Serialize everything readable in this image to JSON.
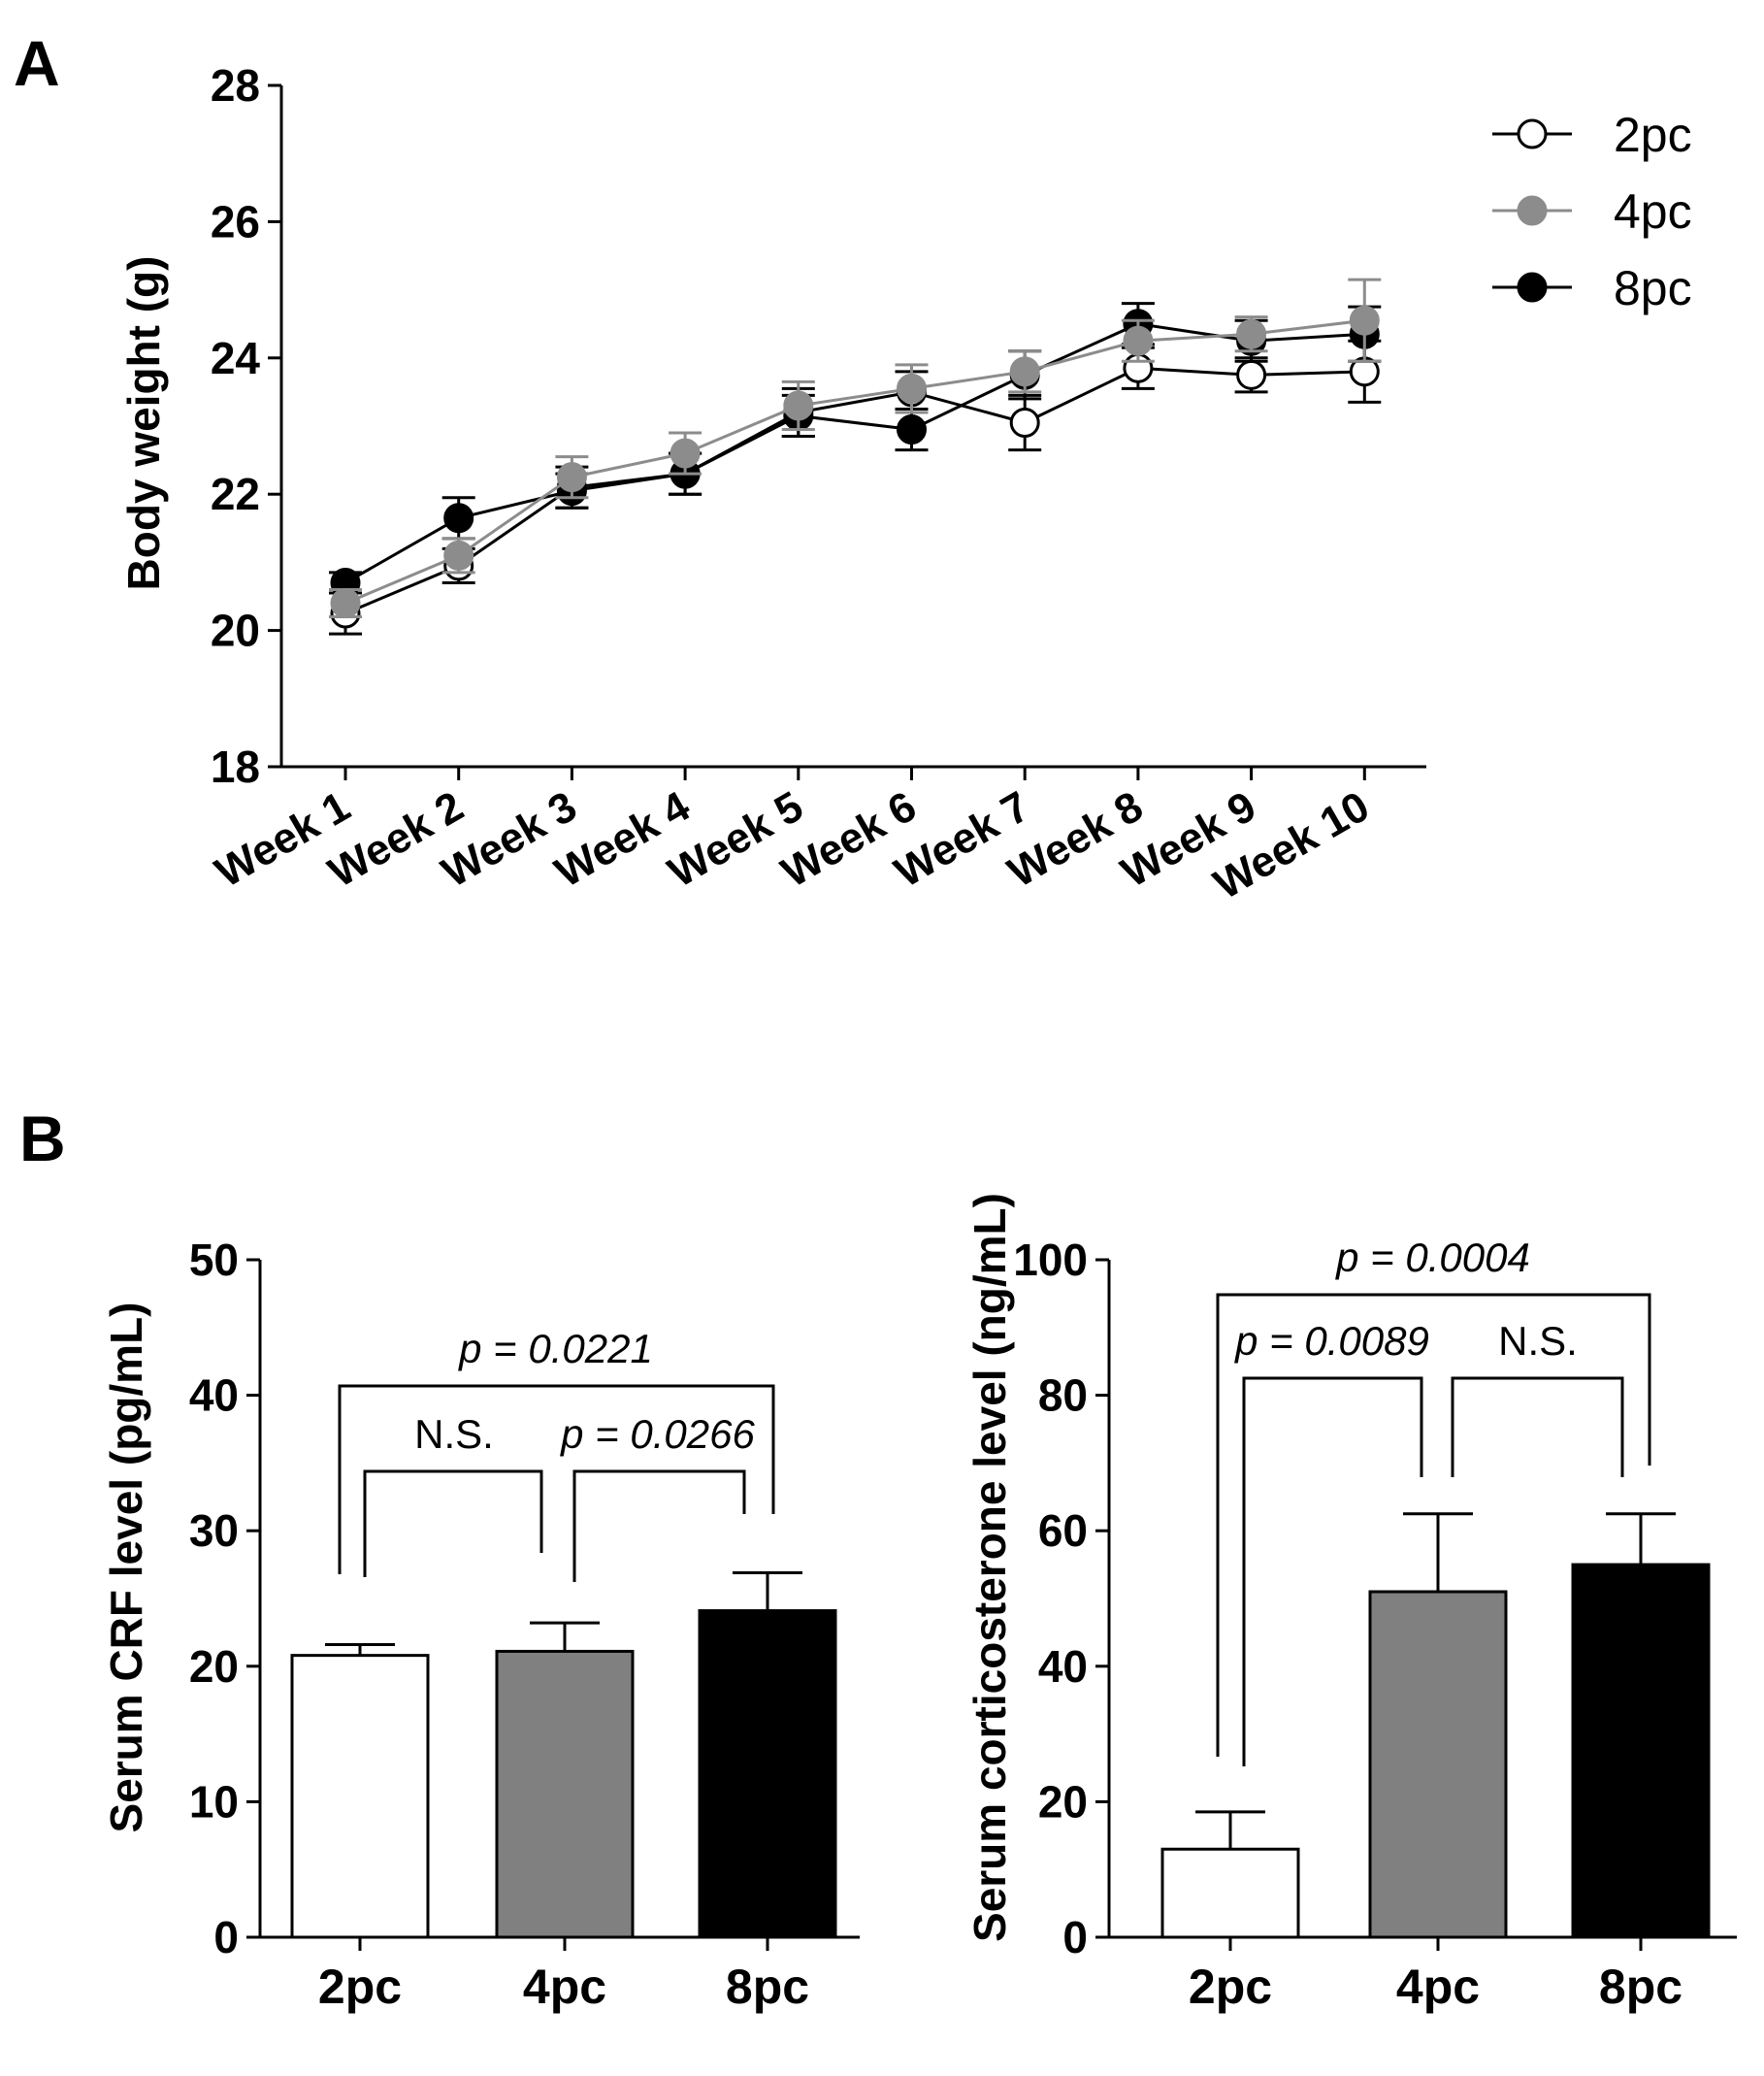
{
  "figure": {
    "panels": [
      {
        "label": "A"
      },
      {
        "label": "B"
      }
    ]
  },
  "chart_data": [
    {
      "id": "panel-a-body-weight",
      "type": "line",
      "title": "",
      "xlabel": "",
      "ylabel": "Body weight (g)",
      "ylim": [
        18,
        28
      ],
      "yticks": [
        18,
        20,
        22,
        24,
        26,
        28
      ],
      "categories": [
        "Week 1",
        "Week 2",
        "Week 3",
        "Week 4",
        "Week 5",
        "Week 6",
        "Week 7",
        "Week 8",
        "Week 9",
        "Week 10"
      ],
      "legend_position": "top-right",
      "series": [
        {
          "name": "2pc",
          "marker": "open-circle",
          "color": "#000000",
          "values": [
            20.25,
            20.95,
            22.1,
            22.3,
            23.2,
            23.5,
            23.05,
            23.85,
            23.75,
            23.8
          ],
          "errors": [
            0.3,
            0.25,
            0.3,
            0.3,
            0.35,
            0.3,
            0.4,
            0.3,
            0.25,
            0.45
          ]
        },
        {
          "name": "4pc",
          "marker": "filled-circle",
          "color": "#8c8c8c",
          "values": [
            20.4,
            21.1,
            22.25,
            22.6,
            23.3,
            23.55,
            23.8,
            24.25,
            24.35,
            24.55
          ],
          "errors": [
            0.2,
            0.25,
            0.3,
            0.3,
            0.35,
            0.35,
            0.3,
            0.3,
            0.25,
            0.6
          ]
        },
        {
          "name": "8pc",
          "marker": "filled-circle",
          "color": "#000000",
          "values": [
            20.7,
            21.65,
            22.05,
            22.3,
            23.15,
            22.95,
            23.75,
            24.5,
            24.25,
            24.35
          ],
          "errors": [
            0.15,
            0.3,
            0.25,
            0.3,
            0.3,
            0.3,
            0.35,
            0.3,
            0.3,
            0.4
          ]
        }
      ]
    },
    {
      "id": "panel-b-crf",
      "type": "bar",
      "ylabel": "Serum CRF level (pg/mL)",
      "ylim": [
        0,
        50
      ],
      "yticks": [
        0,
        10,
        20,
        30,
        40,
        50
      ],
      "categories": [
        "2pc",
        "4pc",
        "8pc"
      ],
      "values": [
        20.8,
        21.1,
        24.1
      ],
      "errors": [
        0.8,
        2.1,
        2.8
      ],
      "colors": [
        "#ffffff",
        "#808080",
        "#000000"
      ],
      "comparisons": [
        {
          "from": 0,
          "to": 1,
          "label": "N.S.",
          "italic": false
        },
        {
          "from": 1,
          "to": 2,
          "label": "p = 0.0266",
          "italic": true
        },
        {
          "from": 0,
          "to": 2,
          "label": "p = 0.0221",
          "italic": true
        }
      ]
    },
    {
      "id": "panel-b-corticosterone",
      "type": "bar",
      "ylabel": "Serum corticosterone level (ng/mL)",
      "ylim": [
        0,
        100
      ],
      "yticks": [
        0,
        20,
        40,
        60,
        80,
        100
      ],
      "categories": [
        "2pc",
        "4pc",
        "8pc"
      ],
      "values": [
        13.0,
        51.0,
        55.0
      ],
      "errors": [
        5.5,
        11.5,
        7.5
      ],
      "colors": [
        "#ffffff",
        "#808080",
        "#000000"
      ],
      "comparisons": [
        {
          "from": 0,
          "to": 1,
          "label": "p = 0.0089",
          "italic": true
        },
        {
          "from": 1,
          "to": 2,
          "label": "N.S.",
          "italic": false
        },
        {
          "from": 0,
          "to": 2,
          "label": "p = 0.0004",
          "italic": true
        }
      ]
    }
  ]
}
